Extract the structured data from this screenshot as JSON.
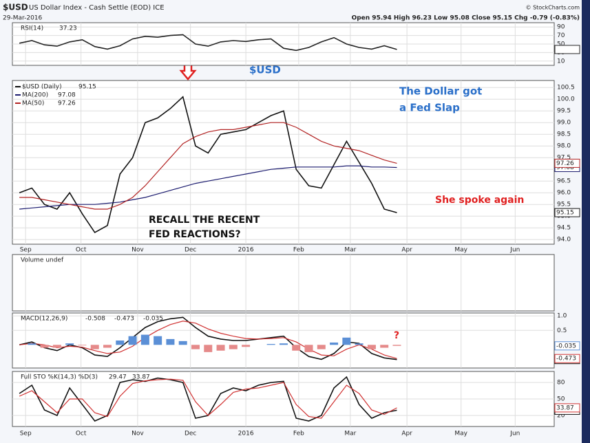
{
  "header": {
    "symbol": "$USD",
    "name": "US Dollar Index - Cash Settle (EOD) ICE",
    "date": "29-Mar-2016",
    "quote": "Open 95.94  High 96.23  Low 95.08  Close 95.15  Chg -0.79 (-0.83%)",
    "credit": "© StockCharts.com"
  },
  "chart_data": [
    {
      "type": "line",
      "label": "RSI(14)",
      "last_label": "37.23",
      "ylim": [
        0,
        100
      ],
      "yticks": [
        90,
        70,
        50,
        30,
        10
      ],
      "x": [
        0,
        1,
        2,
        3,
        4,
        5,
        6,
        7,
        8,
        9,
        10,
        11,
        12,
        13,
        14,
        15,
        16,
        17,
        18,
        19,
        20,
        21,
        22,
        23,
        24,
        25,
        26,
        27,
        28,
        29,
        30
      ],
      "series": [
        {
          "color": "#222222",
          "values": [
            52,
            58,
            48,
            45,
            55,
            60,
            44,
            38,
            46,
            62,
            68,
            66,
            70,
            72,
            50,
            45,
            55,
            58,
            56,
            60,
            62,
            40,
            35,
            42,
            55,
            65,
            50,
            42,
            38,
            46,
            37.23
          ]
        }
      ]
    },
    {
      "type": "line",
      "xlim": [
        -0.55,
        42.5
      ],
      "ylim": [
        93.8,
        100.8
      ],
      "yticks": [
        {
          "value": 94,
          "label": "94.0"
        },
        94.5,
        {
          "value": 95,
          "label": "95.0"
        },
        95.5,
        {
          "value": 96,
          "label": "96.0"
        },
        96.5,
        {
          "value": 97,
          "label": "97.0"
        },
        97.5,
        {
          "value": 98,
          "label": "98.0"
        },
        98.5,
        {
          "value": 99,
          "label": "99.0"
        },
        99.5,
        {
          "value": 100,
          "label": "100.0"
        },
        100.5
      ],
      "xticks": [
        {
          "value": 0.5,
          "label": "Sep"
        },
        {
          "value": 4.9,
          "label": "Oct"
        },
        {
          "value": 9.4,
          "label": "Nov"
        },
        {
          "value": 13.6,
          "label": "Dec"
        },
        {
          "value": 18.0,
          "label": "2016"
        },
        {
          "value": 22.2,
          "label": "Feb"
        },
        {
          "value": 26.3,
          "label": "Mar"
        },
        {
          "value": 30.8,
          "label": "Apr"
        },
        {
          "value": 35.1,
          "label": "May"
        },
        {
          "value": 39.4,
          "label": "Jun"
        }
      ],
      "x": [
        0,
        1,
        2,
        3,
        4,
        5,
        6,
        7,
        8,
        9,
        10,
        11,
        12,
        13,
        14,
        15,
        16,
        17,
        18,
        19,
        20,
        21,
        22,
        23,
        24,
        25,
        26,
        27,
        28,
        29,
        30
      ],
      "series": [
        {
          "name": "$USD (Daily)",
          "last_label": "95.15",
          "color": "#111111",
          "values": [
            96.0,
            96.2,
            95.5,
            95.3,
            96.0,
            95.1,
            94.3,
            94.6,
            96.8,
            97.5,
            99.0,
            99.2,
            99.6,
            100.1,
            98.0,
            97.7,
            98.5,
            98.6,
            98.7,
            99.0,
            99.3,
            99.5,
            97.0,
            96.3,
            96.2,
            97.2,
            98.2,
            97.3,
            96.4,
            95.3,
            95.15
          ]
        },
        {
          "name": "MA(200)",
          "last_label": "97.08",
          "color": "#1a1a6e",
          "values": [
            95.3,
            95.35,
            95.4,
            95.45,
            95.5,
            95.5,
            95.5,
            95.55,
            95.6,
            95.7,
            95.8,
            95.95,
            96.1,
            96.25,
            96.4,
            96.5,
            96.6,
            96.7,
            96.8,
            96.9,
            97.0,
            97.05,
            97.1,
            97.1,
            97.1,
            97.1,
            97.15,
            97.15,
            97.1,
            97.1,
            97.08
          ]
        },
        {
          "name": "MA(50)",
          "last_label": "97.26",
          "color": "#b22222",
          "values": [
            95.8,
            95.8,
            95.7,
            95.6,
            95.5,
            95.4,
            95.3,
            95.3,
            95.5,
            95.8,
            96.3,
            96.9,
            97.5,
            98.1,
            98.4,
            98.6,
            98.7,
            98.7,
            98.8,
            98.9,
            99.0,
            99.0,
            98.8,
            98.5,
            98.2,
            98.0,
            97.9,
            97.8,
            97.6,
            97.4,
            97.26
          ]
        }
      ],
      "annotations": [
        "$USD",
        "The Dollar got",
        "a Fed Slap",
        "She spoke again",
        "RECALL THE RECENT",
        "FED REACTIONS?"
      ]
    },
    {
      "type": "empty",
      "label": "Volume undef"
    },
    {
      "type": "line",
      "label": "MACD(12,26,9)",
      "ylim": [
        -0.8,
        1.1
      ],
      "yticks": [
        {
          "value": 1,
          "label": "1.0"
        },
        0.5
      ],
      "x": [
        0,
        1,
        2,
        3,
        4,
        5,
        6,
        7,
        8,
        9,
        10,
        11,
        12,
        13,
        14,
        15,
        16,
        17,
        18,
        19,
        20,
        21,
        22,
        23,
        24,
        25,
        26,
        27,
        28,
        29,
        30
      ],
      "series": [
        {
          "last_label": "-0.508",
          "color": "#111111",
          "values": [
            0.0,
            0.1,
            -0.1,
            -0.2,
            0.0,
            -0.1,
            -0.35,
            -0.4,
            -0.1,
            0.25,
            0.6,
            0.8,
            0.9,
            0.95,
            0.6,
            0.3,
            0.2,
            0.15,
            0.15,
            0.2,
            0.25,
            0.3,
            -0.1,
            -0.4,
            -0.5,
            -0.3,
            0.1,
            0.05,
            -0.3,
            -0.45,
            -0.508
          ]
        },
        {
          "last_label": "-0.473",
          "color": "#d03030",
          "values": [
            0.0,
            0.05,
            0.0,
            -0.1,
            -0.05,
            -0.08,
            -0.2,
            -0.3,
            -0.25,
            -0.05,
            0.25,
            0.5,
            0.7,
            0.82,
            0.75,
            0.55,
            0.4,
            0.3,
            0.22,
            0.2,
            0.22,
            0.25,
            0.1,
            -0.15,
            -0.35,
            -0.38,
            -0.15,
            0.0,
            -0.15,
            -0.35,
            -0.473
          ]
        },
        {
          "bars": true,
          "last_label": "-0.035",
          "color": "#5b8fd6",
          "neg_color": "#e58a8a",
          "values": [
            0,
            0.05,
            -0.1,
            -0.1,
            0.05,
            -0.02,
            -0.15,
            -0.1,
            0.15,
            0.3,
            0.35,
            0.3,
            0.2,
            0.13,
            -0.15,
            -0.25,
            -0.2,
            -0.15,
            -0.07,
            0,
            0.03,
            0.05,
            -0.2,
            -0.25,
            -0.15,
            0.08,
            0.25,
            0.05,
            -0.15,
            -0.1,
            -0.035
          ]
        }
      ],
      "annotations": [
        "?"
      ]
    },
    {
      "type": "line",
      "label": "Full STO %K(14,3) %D(3)",
      "ylim": [
        0,
        100
      ],
      "yticks": [
        80,
        50,
        20
      ],
      "x": [
        0,
        1,
        2,
        3,
        4,
        5,
        6,
        7,
        8,
        9,
        10,
        11,
        12,
        13,
        14,
        15,
        16,
        17,
        18,
        19,
        20,
        21,
        22,
        23,
        24,
        25,
        26,
        27,
        28,
        29,
        30
      ],
      "series": [
        {
          "last_label": "29.47",
          "color": "#111111",
          "values": [
            60,
            75,
            30,
            20,
            70,
            40,
            10,
            20,
            80,
            85,
            82,
            88,
            85,
            80,
            15,
            20,
            60,
            70,
            65,
            75,
            80,
            82,
            15,
            10,
            20,
            70,
            90,
            40,
            15,
            25,
            29.47
          ]
        },
        {
          "last_label": "33.87",
          "color": "#d03030",
          "values": [
            55,
            65,
            45,
            25,
            50,
            50,
            25,
            18,
            55,
            78,
            83,
            85,
            86,
            84,
            45,
            20,
            40,
            62,
            68,
            70,
            75,
            80,
            40,
            18,
            15,
            45,
            75,
            60,
            30,
            22,
            33.87
          ]
        }
      ]
    }
  ]
}
